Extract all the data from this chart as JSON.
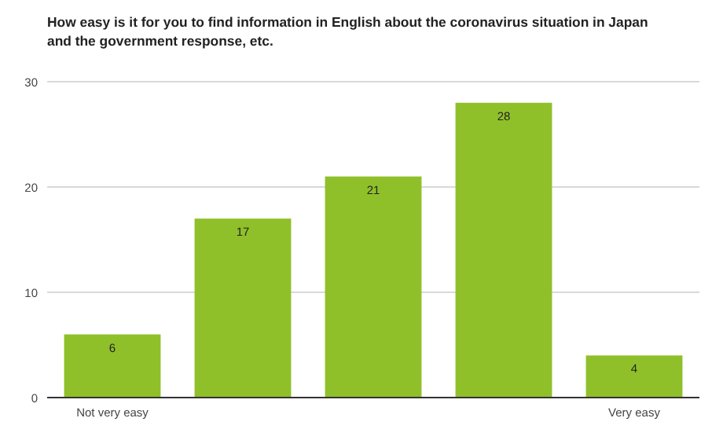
{
  "chart_data": {
    "type": "bar",
    "title": "How easy is it for you to find information in English about the coronavirus situation in Japan and the government response, etc.",
    "categories": [
      "Not very easy",
      null,
      null,
      null,
      "Very easy"
    ],
    "values": [
      6,
      17,
      21,
      28,
      4
    ],
    "color": "#8fc02a",
    "ylim": [
      0,
      30
    ],
    "yticks": [
      0,
      10,
      20,
      30
    ],
    "grid": "y",
    "data_labels": true
  }
}
